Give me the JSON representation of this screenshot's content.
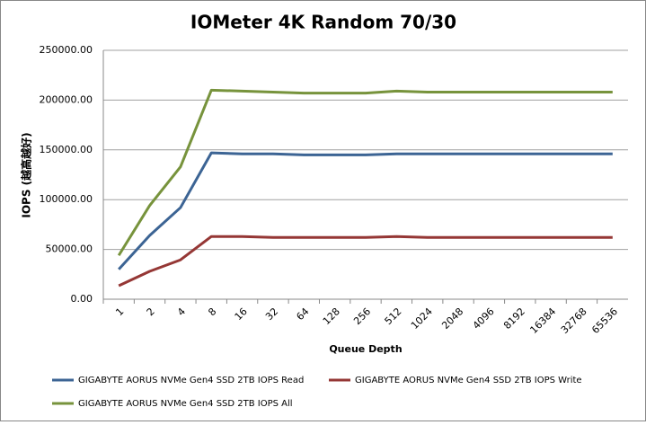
{
  "chart_data": {
    "type": "line",
    "title": "IOMeter 4K Random 70/30",
    "x_label": "Queue Depth",
    "y_label": "IOPS (越高越好)",
    "categories": [
      "1",
      "2",
      "4",
      "8",
      "16",
      "32",
      "64",
      "128",
      "256",
      "512",
      "1024",
      "2048",
      "4096",
      "8192",
      "16384",
      "32768",
      "65536"
    ],
    "series": [
      {
        "name": "GIGABYTE AORUS NVMe Gen4 SSD 2TB IOPS Read",
        "color": "#3c6494",
        "values": [
          30000,
          64000,
          92000,
          147000,
          146000,
          146000,
          145000,
          145000,
          145000,
          146000,
          146000,
          146000,
          146000,
          146000,
          146000,
          146000,
          146000
        ]
      },
      {
        "name": "GIGABYTE AORUS NVMe Gen4 SSD 2TB IOPS Write",
        "color": "#953735",
        "values": [
          13500,
          28000,
          39500,
          63000,
          63000,
          62000,
          62000,
          62000,
          62000,
          63000,
          62000,
          62000,
          62000,
          62000,
          62000,
          62000,
          62000
        ]
      },
      {
        "name": "GIGABYTE AORUS NVMe Gen4 SSD 2TB IOPS All",
        "color": "#77933c",
        "values": [
          44000,
          94000,
          133000,
          210000,
          209000,
          208000,
          207000,
          207000,
          207000,
          209000,
          208000,
          208000,
          208000,
          208000,
          208000,
          208000,
          208000
        ]
      }
    ],
    "ylim": [
      0,
      250000
    ],
    "yticks": [
      {
        "value": 0,
        "label": "0.00"
      },
      {
        "value": 50000,
        "label": "50000.00"
      },
      {
        "value": 100000,
        "label": "100000.00"
      },
      {
        "value": 150000,
        "label": "150000.00"
      },
      {
        "value": 200000,
        "label": "200000.00"
      },
      {
        "value": 250000,
        "label": "250000.00"
      }
    ],
    "grid": true,
    "legend": "bottom"
  }
}
